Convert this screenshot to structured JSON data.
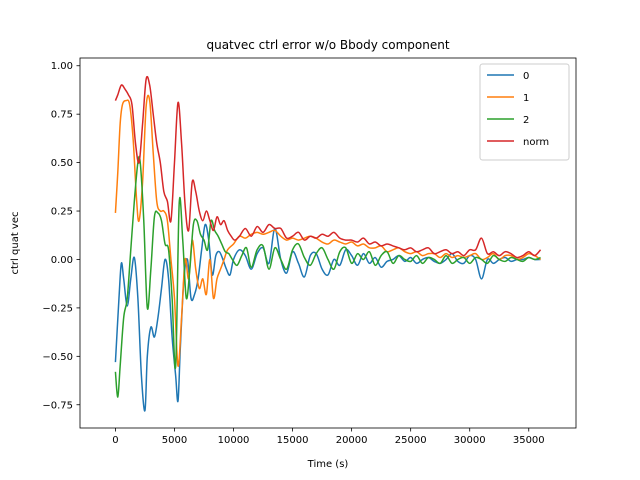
{
  "chart_data": {
    "type": "line",
    "title": "quatvec ctrl error w/o Bbody component",
    "xlabel": "Time (s)",
    "ylabel": "ctrl quat vec",
    "xlim": [
      -3000,
      39000
    ],
    "ylim": [
      -0.87,
      1.04
    ],
    "xticks": [
      0,
      5000,
      10000,
      15000,
      20000,
      25000,
      30000,
      35000
    ],
    "yticks": [
      -0.75,
      -0.5,
      -0.25,
      0.0,
      0.25,
      0.5,
      0.75,
      1.0
    ],
    "xtick_labels": [
      "0",
      "5000",
      "10000",
      "15000",
      "20000",
      "25000",
      "30000",
      "35000"
    ],
    "ytick_labels": [
      "−0.75",
      "−0.50",
      "−0.25",
      "0.00",
      "0.25",
      "0.50",
      "0.75",
      "1.00"
    ],
    "grid": false,
    "legend_position": "top-right",
    "series": [
      {
        "name": "0",
        "color": "#1f77b4",
        "x": [
          0,
          300,
          500,
          700,
          1000,
          1300,
          1600,
          1900,
          2200,
          2500,
          2700,
          3000,
          3300,
          3600,
          3900,
          4200,
          4500,
          4800,
          5100,
          5300,
          5500,
          5800,
          6100,
          6400,
          6700,
          7000,
          7300,
          7600,
          7900,
          8200,
          8500,
          8800,
          9100,
          9400,
          9700,
          10000,
          10500,
          11000,
          11500,
          12000,
          12500,
          13000,
          13500,
          14000,
          14500,
          15000,
          15500,
          16000,
          16500,
          17000,
          17500,
          18000,
          18500,
          19000,
          19500,
          20000,
          20500,
          21000,
          21500,
          22000,
          22500,
          23000,
          23500,
          24000,
          24500,
          25000,
          25500,
          26000,
          26500,
          27000,
          27500,
          28000,
          28500,
          29000,
          29500,
          30000,
          30500,
          31000,
          31500,
          32000,
          32500,
          33000,
          33500,
          34000,
          34500,
          35000,
          35500,
          36000
        ],
        "y": [
          -0.53,
          -0.2,
          -0.02,
          -0.1,
          -0.24,
          -0.1,
          0.01,
          -0.2,
          -0.6,
          -0.78,
          -0.5,
          -0.35,
          -0.4,
          -0.3,
          -0.15,
          0.0,
          -0.1,
          -0.4,
          -0.6,
          -0.73,
          -0.45,
          -0.1,
          0.0,
          -0.2,
          -0.18,
          -0.1,
          0.05,
          0.18,
          0.1,
          -0.08,
          0.02,
          0.04,
          0.0,
          -0.05,
          -0.08,
          0.0,
          0.05,
          0.02,
          -0.05,
          0.03,
          0.06,
          -0.02,
          0.16,
          0.0,
          -0.07,
          0.04,
          -0.02,
          -0.09,
          0.02,
          0.03,
          -0.05,
          -0.08,
          0.0,
          -0.03,
          0.05,
          0.02,
          -0.03,
          0.03,
          -0.02,
          0.01,
          -0.04,
          -0.01,
          0.0,
          0.02,
          -0.01,
          0.01,
          -0.02,
          0.0,
          0.01,
          -0.01,
          -0.02,
          0.0,
          0.03,
          -0.01,
          -0.02,
          0.02,
          0.0,
          -0.1,
          0.0,
          -0.02,
          0.0,
          0.01,
          -0.01,
          0.0,
          0.0,
          0.01,
          0.0,
          0.0
        ]
      },
      {
        "name": "1",
        "color": "#ff7f0e",
        "x": [
          0,
          200,
          400,
          600,
          900,
          1200,
          1500,
          1800,
          2000,
          2300,
          2600,
          2900,
          3200,
          3500,
          3800,
          4100,
          4400,
          4700,
          5000,
          5300,
          5600,
          5900,
          6200,
          6500,
          6800,
          7100,
          7400,
          7700,
          8000,
          8300,
          8600,
          8900,
          9200,
          9500,
          10000,
          10500,
          11000,
          11500,
          12000,
          12500,
          13000,
          13500,
          14000,
          14500,
          15000,
          15500,
          16000,
          16500,
          17000,
          17500,
          18000,
          18500,
          19000,
          19500,
          20000,
          20500,
          21000,
          21500,
          22000,
          22500,
          23000,
          23500,
          24000,
          24500,
          25000,
          25500,
          26000,
          26500,
          27000,
          27500,
          28000,
          28500,
          29000,
          29500,
          30000,
          30500,
          31000,
          31500,
          32000,
          32500,
          33000,
          33500,
          34000,
          34500,
          35000,
          35500,
          36000
        ],
        "y": [
          0.24,
          0.45,
          0.7,
          0.8,
          0.82,
          0.8,
          0.62,
          0.3,
          0.2,
          0.4,
          0.79,
          0.82,
          0.55,
          0.3,
          0.25,
          0.25,
          0.2,
          0.0,
          -0.2,
          -0.55,
          -0.3,
          0.0,
          -0.1,
          0.1,
          -0.05,
          -0.15,
          -0.1,
          -0.18,
          0.0,
          -0.2,
          -0.1,
          -0.05,
          0.0,
          0.05,
          0.08,
          0.12,
          0.11,
          0.13,
          0.14,
          0.13,
          0.14,
          0.15,
          0.12,
          0.1,
          0.11,
          0.1,
          0.11,
          0.12,
          0.11,
          0.09,
          0.08,
          0.1,
          0.09,
          0.08,
          0.09,
          0.07,
          0.08,
          0.06,
          0.06,
          0.07,
          0.04,
          0.05,
          0.06,
          0.04,
          0.03,
          0.04,
          0.02,
          0.03,
          0.03,
          0.01,
          0.03,
          0.01,
          0.02,
          0.01,
          0.02,
          0.03,
          0.0,
          0.01,
          0.03,
          0.0,
          0.02,
          0.02,
          0.0,
          0.01,
          0.03,
          0.02,
          0.0
        ]
      },
      {
        "name": "2",
        "color": "#2ca02c",
        "x": [
          0,
          200,
          400,
          700,
          1000,
          1300,
          1600,
          1900,
          2100,
          2400,
          2700,
          3000,
          3300,
          3600,
          3900,
          4200,
          4500,
          4800,
          5100,
          5400,
          5700,
          6000,
          6300,
          6600,
          6900,
          7200,
          7500,
          7800,
          8100,
          8400,
          8700,
          9000,
          9300,
          9600,
          9900,
          10300,
          10700,
          11100,
          11500,
          12000,
          12500,
          13000,
          13500,
          14000,
          14500,
          15000,
          15500,
          16000,
          16500,
          17000,
          17500,
          18000,
          18500,
          19000,
          19500,
          20000,
          20500,
          21000,
          21500,
          22000,
          22500,
          23000,
          23500,
          24000,
          24500,
          25000,
          25500,
          26000,
          26500,
          27000,
          27500,
          28000,
          28500,
          29000,
          29500,
          30000,
          30500,
          31000,
          31500,
          32000,
          32500,
          33000,
          33500,
          34000,
          34500,
          35000,
          35500,
          36000
        ],
        "y": [
          -0.58,
          -0.71,
          -0.55,
          -0.3,
          -0.2,
          0.05,
          0.3,
          0.5,
          0.5,
          0.2,
          -0.25,
          -0.05,
          0.22,
          0.24,
          0.2,
          0.08,
          0.05,
          -0.2,
          -0.55,
          0.29,
          0.1,
          -0.2,
          -0.05,
          0.18,
          0.2,
          0.13,
          0.1,
          0.05,
          0.2,
          0.15,
          0.12,
          0.08,
          0.04,
          0.03,
          0.0,
          -0.03,
          0.02,
          0.06,
          -0.04,
          0.05,
          0.07,
          -0.05,
          0.06,
          0.0,
          -0.05,
          0.05,
          0.08,
          0.01,
          -0.03,
          0.03,
          0.06,
          0.0,
          -0.05,
          0.04,
          0.06,
          -0.02,
          0.03,
          0.0,
          0.04,
          -0.03,
          0.02,
          0.04,
          -0.02,
          0.02,
          0.0,
          -0.01,
          0.02,
          -0.02,
          0.01,
          0.0,
          -0.02,
          0.02,
          -0.02,
          0.0,
          0.01,
          -0.02,
          0.01,
          0.0,
          -0.02,
          0.02,
          0.0,
          -0.01,
          0.01,
          0.0,
          -0.01,
          0.01,
          0.0,
          0.01
        ]
      },
      {
        "name": "norm",
        "color": "#d62728",
        "x": [
          0,
          200,
          500,
          800,
          1100,
          1400,
          1700,
          2000,
          2300,
          2600,
          2900,
          3200,
          3500,
          3800,
          4100,
          4400,
          4700,
          5000,
          5300,
          5600,
          5900,
          6200,
          6500,
          6800,
          7100,
          7400,
          7700,
          8000,
          8300,
          8600,
          8900,
          9200,
          9500,
          9800,
          10100,
          10500,
          11000,
          11500,
          12000,
          12500,
          13000,
          13500,
          14000,
          14500,
          15000,
          15500,
          16000,
          16500,
          17000,
          17500,
          18000,
          18500,
          19000,
          19500,
          20000,
          20500,
          21000,
          21500,
          22000,
          22500,
          23000,
          23500,
          24000,
          24500,
          25000,
          25500,
          26000,
          26500,
          27000,
          27500,
          28000,
          28500,
          29000,
          29500,
          30000,
          30500,
          31000,
          31500,
          32000,
          32500,
          33000,
          33500,
          34000,
          34500,
          35000,
          35500,
          36000
        ],
        "y": [
          0.82,
          0.85,
          0.9,
          0.88,
          0.85,
          0.8,
          0.6,
          0.5,
          0.7,
          0.93,
          0.9,
          0.75,
          0.6,
          0.5,
          0.35,
          0.3,
          0.2,
          0.5,
          0.81,
          0.6,
          0.28,
          0.15,
          0.4,
          0.35,
          0.25,
          0.2,
          0.25,
          0.2,
          0.15,
          0.22,
          0.18,
          0.2,
          0.15,
          0.12,
          0.1,
          0.12,
          0.16,
          0.12,
          0.17,
          0.14,
          0.18,
          0.16,
          0.16,
          0.11,
          0.12,
          0.14,
          0.1,
          0.12,
          0.11,
          0.13,
          0.12,
          0.14,
          0.11,
          0.1,
          0.1,
          0.09,
          0.11,
          0.08,
          0.09,
          0.07,
          0.08,
          0.07,
          0.06,
          0.05,
          0.06,
          0.04,
          0.05,
          0.06,
          0.03,
          0.04,
          0.05,
          0.03,
          0.04,
          0.02,
          0.05,
          0.05,
          0.11,
          0.03,
          0.04,
          0.02,
          0.04,
          0.03,
          0.01,
          0.02,
          0.04,
          0.02,
          0.05
        ]
      }
    ]
  }
}
